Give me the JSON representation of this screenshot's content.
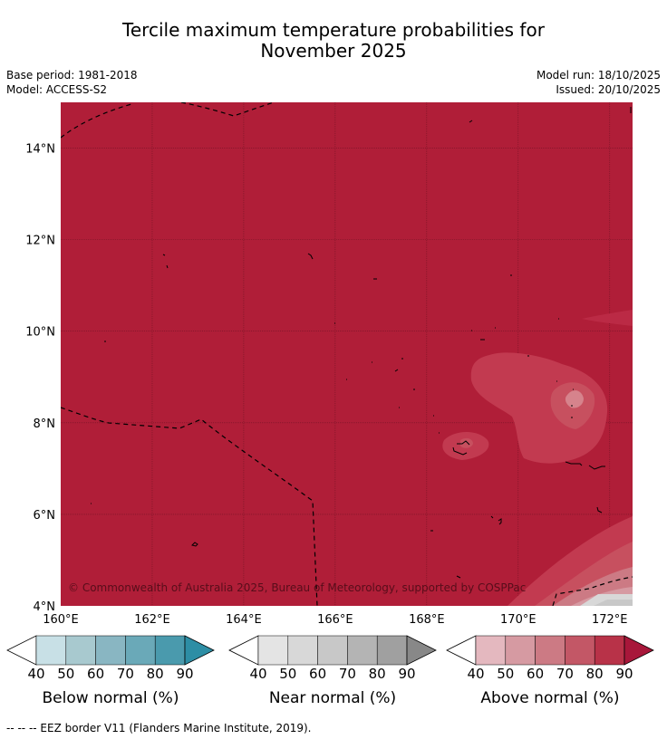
{
  "title": {
    "line1": "Tercile maximum temperature probabilities for",
    "line2": "November 2025"
  },
  "meta": {
    "base_period": "Base period: 1981-2018",
    "model": "Model: ACCESS-S2",
    "model_run": "Model run: 18/10/2025",
    "issued": "Issued: 20/10/2025"
  },
  "map": {
    "lat_range": [
      4,
      15
    ],
    "lon_range": [
      160,
      172.5
    ],
    "lat_ticks": [
      "4°N",
      "6°N",
      "8°N",
      "10°N",
      "12°N",
      "14°N"
    ],
    "lon_ticks": [
      "160°E",
      "162°E",
      "164°E",
      "166°E",
      "168°E",
      "170°E",
      "172°E"
    ],
    "fill_color": "#b01e38",
    "copyright": "© Commonwealth of Australia 2025, Bureau of Meteorology, supported by COSPPac"
  },
  "colorbars": [
    {
      "title": "Below normal (%)",
      "ticks": [
        "40",
        "50",
        "60",
        "70",
        "80",
        "90"
      ],
      "colors": [
        "#ffffff",
        "#c8e0e6",
        "#a8c9cf",
        "#89b6c2",
        "#6aa9b8",
        "#4a9aad",
        "#2d8ea5"
      ]
    },
    {
      "title": "Near normal (%)",
      "ticks": [
        "40",
        "50",
        "60",
        "70",
        "80",
        "90"
      ],
      "colors": [
        "#ffffff",
        "#e4e4e4",
        "#d8d8d8",
        "#c8c8c8",
        "#b4b4b4",
        "#a0a0a0",
        "#888888"
      ]
    },
    {
      "title": "Above normal (%)",
      "ticks": [
        "40",
        "50",
        "60",
        "70",
        "80",
        "90"
      ],
      "colors": [
        "#ffffff",
        "#e4b8bf",
        "#d69aa2",
        "#cc7a84",
        "#c35766",
        "#b83248",
        "#a8173a"
      ]
    }
  ],
  "footnote": "--  --  -- EEZ border V11 (Flanders Marine Institute, 2019)."
}
